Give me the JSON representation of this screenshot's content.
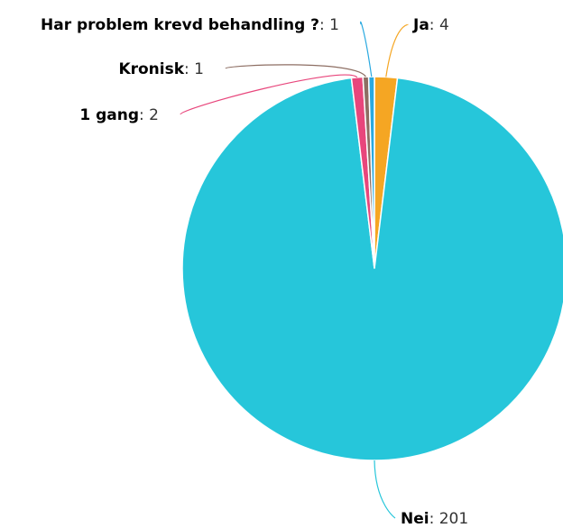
{
  "chart_data": {
    "type": "pie",
    "title": "",
    "slices": [
      {
        "label": "Ja",
        "value": 4,
        "color": "#f5a623"
      },
      {
        "label": "Nei",
        "value": 201,
        "color": "#26c6da"
      },
      {
        "label": "1 gang",
        "value": 2,
        "color": "#e8467c"
      },
      {
        "label": "Kronisk",
        "value": 1,
        "color": "#8d6e63"
      },
      {
        "label": "Har problem krevd behandling ?",
        "value": 1,
        "color": "#29a9e0"
      }
    ],
    "legend": "none",
    "data_labels": "outside-with-leader-lines"
  }
}
